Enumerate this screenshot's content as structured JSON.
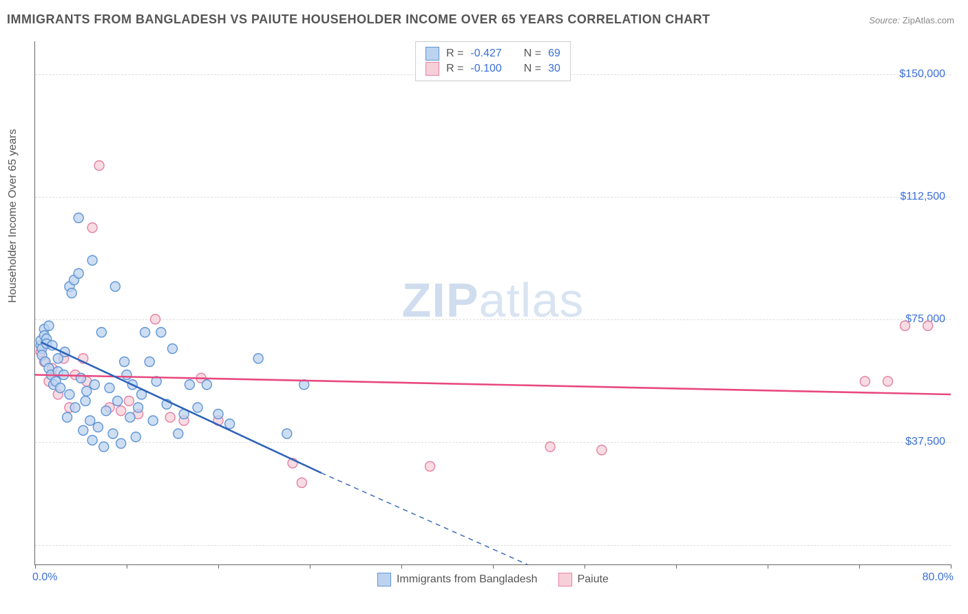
{
  "title": "IMMIGRANTS FROM BANGLADESH VS PAIUTE HOUSEHOLDER INCOME OVER 65 YEARS CORRELATION CHART",
  "source_label": "Source:",
  "source_value": "ZipAtlas.com",
  "watermark_a": "ZIP",
  "watermark_b": "atlas",
  "yaxis_title": "Householder Income Over 65 years",
  "chart": {
    "type": "scatter",
    "xlim": [
      0,
      80
    ],
    "ylim": [
      0,
      160000
    ],
    "x_unit": "%",
    "xticks_pct": [
      0,
      8,
      16,
      24,
      32,
      40,
      48,
      56,
      64,
      72,
      80
    ],
    "yticks": [
      37500,
      75000,
      112500,
      150000
    ],
    "ytick_labels": [
      "$37,500",
      "$75,000",
      "$112,500",
      "$150,000"
    ],
    "xlim_labels": [
      "0.0%",
      "80.0%"
    ],
    "grid_dashed_levels": [
      6000,
      37500,
      75000,
      112500,
      150000
    ],
    "background_color": "#ffffff",
    "grid_color": "#dddddd",
    "axis_color": "#666666",
    "marker_radius": 7,
    "marker_stroke_width": 1.4,
    "line_width_solid": 2.6,
    "line_width_dashed": 1.4,
    "series": {
      "bangladesh": {
        "label": "Immigrants from Bangladesh",
        "R": "-0.427",
        "N": "69",
        "fill": "#bcd3ef",
        "stroke": "#5f94d6",
        "line_color": "#2e63b8",
        "line_solid": {
          "x1": 0.5,
          "y1": 68000,
          "x2": 25,
          "y2": 28000
        },
        "line_dashed": {
          "x1": 25,
          "y1": 28000,
          "x2": 43,
          "y2": 0
        },
        "points": [
          [
            0.5,
            67000
          ],
          [
            0.5,
            68500
          ],
          [
            0.6,
            66000
          ],
          [
            0.6,
            64000
          ],
          [
            0.8,
            72000
          ],
          [
            0.8,
            70000
          ],
          [
            0.9,
            62000
          ],
          [
            1.0,
            69000
          ],
          [
            1.0,
            67500
          ],
          [
            1.2,
            73000
          ],
          [
            1.2,
            60000
          ],
          [
            1.4,
            58000
          ],
          [
            1.5,
            67000
          ],
          [
            1.6,
            55000
          ],
          [
            1.8,
            56000
          ],
          [
            2.0,
            63000
          ],
          [
            2.0,
            59000
          ],
          [
            2.2,
            54000
          ],
          [
            2.5,
            58000
          ],
          [
            2.6,
            65000
          ],
          [
            2.8,
            45000
          ],
          [
            3.0,
            85000
          ],
          [
            3.0,
            52000
          ],
          [
            3.2,
            83000
          ],
          [
            3.4,
            87000
          ],
          [
            3.5,
            48000
          ],
          [
            3.8,
            106000
          ],
          [
            3.8,
            89000
          ],
          [
            4.0,
            57000
          ],
          [
            4.2,
            41000
          ],
          [
            4.4,
            50000
          ],
          [
            4.5,
            53000
          ],
          [
            4.8,
            44000
          ],
          [
            5.0,
            93000
          ],
          [
            5.0,
            38000
          ],
          [
            5.2,
            55000
          ],
          [
            5.5,
            42000
          ],
          [
            5.8,
            71000
          ],
          [
            6.0,
            36000
          ],
          [
            6.2,
            47000
          ],
          [
            6.5,
            54000
          ],
          [
            6.8,
            40000
          ],
          [
            7.0,
            85000
          ],
          [
            7.2,
            50000
          ],
          [
            7.5,
            37000
          ],
          [
            7.8,
            62000
          ],
          [
            8.0,
            58000
          ],
          [
            8.3,
            45000
          ],
          [
            8.5,
            55000
          ],
          [
            8.8,
            39000
          ],
          [
            9.0,
            48000
          ],
          [
            9.3,
            52000
          ],
          [
            9.6,
            71000
          ],
          [
            10.0,
            62000
          ],
          [
            10.3,
            44000
          ],
          [
            10.6,
            56000
          ],
          [
            11.0,
            71000
          ],
          [
            11.5,
            49000
          ],
          [
            12.0,
            66000
          ],
          [
            12.5,
            40000
          ],
          [
            13.0,
            46000
          ],
          [
            13.5,
            55000
          ],
          [
            14.2,
            48000
          ],
          [
            15.0,
            55000
          ],
          [
            16.0,
            46000
          ],
          [
            17.0,
            43000
          ],
          [
            19.5,
            63000
          ],
          [
            22.0,
            40000
          ],
          [
            23.5,
            55000
          ]
        ]
      },
      "paiute": {
        "label": "Paiute",
        "R": "-0.100",
        "N": "30",
        "fill": "#f6d0d9",
        "stroke": "#e481a1",
        "line_color": "#e8487e",
        "line_solid": {
          "x1": 0,
          "y1": 58000,
          "x2": 80,
          "y2": 52000
        },
        "points": [
          [
            0.5,
            65000
          ],
          [
            0.8,
            62000
          ],
          [
            1.2,
            56000
          ],
          [
            1.5,
            60000
          ],
          [
            2.0,
            52000
          ],
          [
            2.5,
            63000
          ],
          [
            3.0,
            48000
          ],
          [
            3.5,
            58000
          ],
          [
            4.2,
            63000
          ],
          [
            5.0,
            103000
          ],
          [
            5.6,
            122000
          ],
          [
            6.5,
            48000
          ],
          [
            7.5,
            47000
          ],
          [
            8.2,
            50000
          ],
          [
            9.0,
            46000
          ],
          [
            10.5,
            75000
          ],
          [
            11.8,
            45000
          ],
          [
            13.0,
            44000
          ],
          [
            14.5,
            57000
          ],
          [
            16.0,
            44000
          ],
          [
            22.5,
            31000
          ],
          [
            23.3,
            25000
          ],
          [
            34.5,
            30000
          ],
          [
            45.0,
            36000
          ],
          [
            49.5,
            35000
          ],
          [
            72.5,
            56000
          ],
          [
            74.5,
            56000
          ],
          [
            76.0,
            73000
          ],
          [
            78.0,
            73000
          ],
          [
            4.5,
            56000
          ]
        ]
      }
    }
  },
  "bottom_legend": [
    {
      "key": "bangladesh"
    },
    {
      "key": "paiute"
    }
  ],
  "stats_box": {
    "rows": [
      {
        "key": "bangladesh"
      },
      {
        "key": "paiute"
      }
    ],
    "R_label": "R =",
    "N_label": "N ="
  }
}
